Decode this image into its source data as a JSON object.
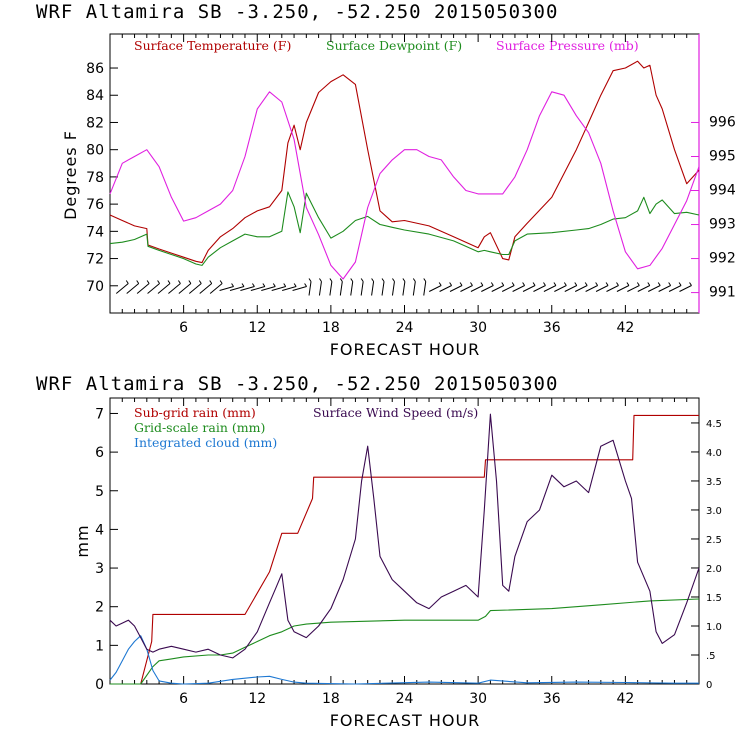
{
  "chart_data": [
    {
      "type": "line",
      "title": "WRF   Altamira  SB  -3.250, -52.250  2015050300",
      "xlabel": "FORECAST HOUR",
      "ylabel": "Degrees F",
      "y2label": "",
      "xlim": [
        0,
        48
      ],
      "ylim": [
        68,
        88.5
      ],
      "y2lim": [
        990.4,
        998.6
      ],
      "xticks": [
        "6",
        "12",
        "18",
        "24",
        "30",
        "36",
        "42"
      ],
      "xtick_values": [
        6,
        12,
        18,
        24,
        30,
        36,
        42
      ],
      "yticks": [
        "70",
        "72",
        "74",
        "76",
        "78",
        "80",
        "82",
        "84",
        "86"
      ],
      "ytick_values": [
        70,
        72,
        74,
        76,
        78,
        80,
        82,
        84,
        86
      ],
      "y2ticks": [
        "991",
        "992",
        "993",
        "994",
        "995",
        "996"
      ],
      "y2tick_values": [
        991,
        992,
        993,
        994,
        995,
        996
      ],
      "legend": [
        "Surface Temperature (F)",
        "Surface Dewpoint (F)",
        "Surface Pressure (mb)"
      ],
      "series": [
        {
          "name": "Surface Temperature (F)",
          "axis": "left",
          "color": "#b00000",
          "x": [
            0,
            1,
            2,
            3,
            3.1,
            4,
            5,
            6,
            7,
            7.5,
            8,
            9,
            10,
            11,
            12,
            13,
            14,
            14.5,
            15,
            15.5,
            16,
            17,
            18,
            19,
            20,
            21,
            22,
            23,
            24,
            26,
            28,
            30,
            30.5,
            31,
            32,
            32.5,
            33,
            34,
            36,
            38,
            39,
            40,
            41,
            42,
            43,
            43.5,
            44,
            44.5,
            45,
            46,
            47,
            48
          ],
          "values": [
            75.2,
            74.8,
            74.4,
            74.2,
            73,
            72.7,
            72.4,
            72.1,
            71.8,
            71.7,
            72.6,
            73.6,
            74.2,
            75,
            75.5,
            75.8,
            77,
            80.5,
            81.8,
            80,
            82,
            84.2,
            85,
            85.5,
            84.8,
            80,
            75.5,
            74.7,
            74.8,
            74.4,
            73.6,
            72.8,
            73.6,
            73.9,
            72,
            71.9,
            73.6,
            74.6,
            76.5,
            80,
            82,
            84,
            85.8,
            86,
            86.5,
            86,
            86.2,
            84,
            83,
            80,
            77.5,
            78.5
          ]
        },
        {
          "name": "Surface Dewpoint (F)",
          "axis": "left",
          "color": "#1e8c1e",
          "x": [
            0,
            1,
            2,
            3,
            3.1,
            4,
            5,
            6,
            7,
            7.5,
            8,
            9,
            10,
            11,
            12,
            13,
            14,
            14.5,
            15,
            15.5,
            16,
            17,
            18,
            19,
            20,
            21,
            22,
            23,
            24,
            26,
            28,
            30,
            30.5,
            31,
            32,
            32.5,
            33,
            34,
            36,
            38,
            39,
            40,
            41,
            42,
            43,
            43.5,
            44,
            44.5,
            45,
            46,
            47,
            48
          ],
          "values": [
            73.1,
            73.2,
            73.4,
            73.8,
            72.9,
            72.6,
            72.3,
            72,
            71.6,
            71.5,
            72.1,
            72.8,
            73.3,
            73.8,
            73.6,
            73.6,
            74,
            76.9,
            75.8,
            73.9,
            76.8,
            75,
            73.5,
            74,
            74.8,
            75.1,
            74.5,
            74.3,
            74.1,
            73.8,
            73.3,
            72.5,
            72.6,
            72.5,
            72.3,
            72.3,
            73.3,
            73.8,
            73.9,
            74.1,
            74.2,
            74.5,
            74.9,
            75,
            75.5,
            76.5,
            75.3,
            76,
            76.3,
            75.3,
            75.4,
            75.2
          ]
        },
        {
          "name": "Surface Pressure (mb)",
          "axis": "right",
          "color": "#e020e0",
          "x": [
            0,
            1,
            2,
            3,
            4,
            5,
            6,
            7,
            8,
            9,
            10,
            11,
            12,
            13,
            14,
            15,
            16,
            17,
            18,
            19,
            20,
            21,
            22,
            23,
            24,
            25,
            26,
            27,
            28,
            29,
            30,
            31,
            32,
            33,
            34,
            35,
            36,
            37,
            38,
            39,
            40,
            41,
            42,
            43,
            44,
            45,
            46,
            47,
            48
          ],
          "values": [
            993.9,
            994.8,
            995,
            995.2,
            994.7,
            993.8,
            993.1,
            993.2,
            993.4,
            993.6,
            994,
            995,
            996.4,
            996.9,
            996.6,
            995.5,
            993.5,
            992.7,
            991.8,
            991.4,
            991.9,
            993.5,
            994.5,
            994.9,
            995.2,
            995.2,
            995,
            994.9,
            994.4,
            994,
            993.9,
            993.9,
            993.9,
            994.4,
            995.2,
            996.2,
            996.9,
            996.8,
            996.2,
            995.7,
            994.8,
            993.4,
            992.2,
            991.7,
            991.8,
            992.3,
            993,
            993.7,
            994.7
          ]
        }
      ],
      "wind_barbs": {
        "row_y": 69.8,
        "x_start": 1,
        "x_step": 0.85,
        "count": 55
      }
    },
    {
      "type": "line",
      "title": "WRF   Altamira  SB  -3.250, -52.250  2015050300",
      "xlabel": "FORECAST HOUR",
      "ylabel": "mm",
      "xlim": [
        0,
        48
      ],
      "ylim": [
        0,
        7.4
      ],
      "y2lim": [
        0,
        4.93
      ],
      "xticks": [
        "6",
        "12",
        "18",
        "24",
        "30",
        "36",
        "42"
      ],
      "xtick_values": [
        6,
        12,
        18,
        24,
        30,
        36,
        42
      ],
      "yticks": [
        "0",
        "1",
        "2",
        "3",
        "4",
        "5",
        "6",
        "7"
      ],
      "ytick_values": [
        0,
        1,
        2,
        3,
        4,
        5,
        6,
        7
      ],
      "y2ticks": [
        "0",
        ".5",
        "1.0",
        "1.5",
        "2.0",
        "2.5",
        "3.0",
        "3.5",
        "4.0",
        "4.5"
      ],
      "y2tick_values": [
        0,
        0.5,
        1,
        1.5,
        2,
        2.5,
        3,
        3.5,
        4,
        4.5
      ],
      "legend": [
        "Sub-grid rain (mm)",
        "Surface Wind Speed (m/s)",
        "Grid-scale rain (mm)",
        "Integrated cloud (mm)"
      ],
      "series": [
        {
          "name": "Sub-grid rain (mm)",
          "axis": "left",
          "color": "#b00000",
          "x": [
            0,
            2.5,
            3.4,
            3.5,
            11,
            13,
            14,
            15.2,
            15.3,
            16.5,
            16.6,
            30.5,
            30.6,
            38,
            41,
            42.6,
            42.7,
            48
          ],
          "values": [
            0,
            0,
            1.1,
            1.8,
            1.8,
            2.9,
            3.9,
            3.9,
            3.9,
            4.8,
            5.35,
            5.35,
            5.8,
            5.8,
            5.8,
            5.8,
            6.95,
            6.95
          ]
        },
        {
          "name": "Grid-scale rain (mm)",
          "axis": "left",
          "color": "#1e8c1e",
          "x": [
            0,
            2.5,
            3.5,
            4,
            5,
            6,
            8,
            9,
            10,
            11,
            12,
            13,
            14,
            15,
            16,
            18,
            24,
            30,
            30.6,
            31,
            36,
            40,
            44,
            48
          ],
          "values": [
            0,
            0,
            0.45,
            0.6,
            0.65,
            0.7,
            0.75,
            0.75,
            0.8,
            0.95,
            1.1,
            1.25,
            1.35,
            1.5,
            1.55,
            1.6,
            1.65,
            1.65,
            1.75,
            1.9,
            1.95,
            2.05,
            2.15,
            2.2
          ]
        },
        {
          "name": "Integrated cloud (mm)",
          "axis": "left",
          "color": "#1e78d2",
          "x": [
            0,
            0.5,
            1,
            1.5,
            2,
            2.5,
            3,
            3.5,
            4,
            5,
            6,
            8,
            10,
            11,
            12,
            13,
            14,
            15,
            16,
            20,
            26,
            30,
            31,
            34,
            38,
            42,
            46,
            48
          ],
          "values": [
            0.1,
            0.3,
            0.6,
            0.9,
            1.1,
            1.25,
            0.9,
            0.35,
            0.08,
            0.02,
            0,
            0.02,
            0.12,
            0.15,
            0.18,
            0.2,
            0.12,
            0.05,
            0.02,
            0,
            0.05,
            0.02,
            0.1,
            0.03,
            0.05,
            0.04,
            0.02,
            0.02
          ]
        },
        {
          "name": "Surface Wind Speed (m/s)",
          "axis": "right",
          "color": "#3a0a50",
          "x": [
            0,
            0.5,
            1,
            1.5,
            2,
            2.5,
            3,
            3.5,
            4,
            5,
            6,
            7,
            8,
            9,
            10,
            11,
            12,
            13,
            13.5,
            14,
            14.5,
            15,
            16,
            17,
            18,
            19,
            20,
            20.5,
            21,
            21.5,
            22,
            23,
            24,
            25,
            26,
            27,
            28,
            29,
            30,
            30.5,
            31,
            31.5,
            32,
            32.5,
            33,
            34,
            35,
            36,
            37,
            38,
            39,
            40,
            41,
            42,
            42.5,
            43,
            44,
            44.5,
            45,
            46,
            47,
            48
          ],
          "values": [
            1.1,
            1.0,
            1.05,
            1.1,
            1.0,
            0.8,
            0.6,
            0.55,
            0.6,
            0.65,
            0.6,
            0.55,
            0.6,
            0.5,
            0.45,
            0.6,
            0.9,
            1.4,
            1.65,
            1.9,
            1.1,
            0.9,
            0.8,
            1.0,
            1.3,
            1.8,
            2.5,
            3.5,
            4.1,
            3.2,
            2.2,
            1.8,
            1.6,
            1.4,
            1.3,
            1.5,
            1.6,
            1.7,
            1.5,
            3.0,
            4.65,
            3.5,
            1.7,
            1.6,
            2.2,
            2.8,
            3.0,
            3.6,
            3.4,
            3.5,
            3.3,
            4.1,
            4.2,
            3.5,
            3.2,
            2.1,
            1.6,
            0.9,
            0.7,
            0.85,
            1.4,
            2.0
          ]
        }
      ]
    }
  ]
}
